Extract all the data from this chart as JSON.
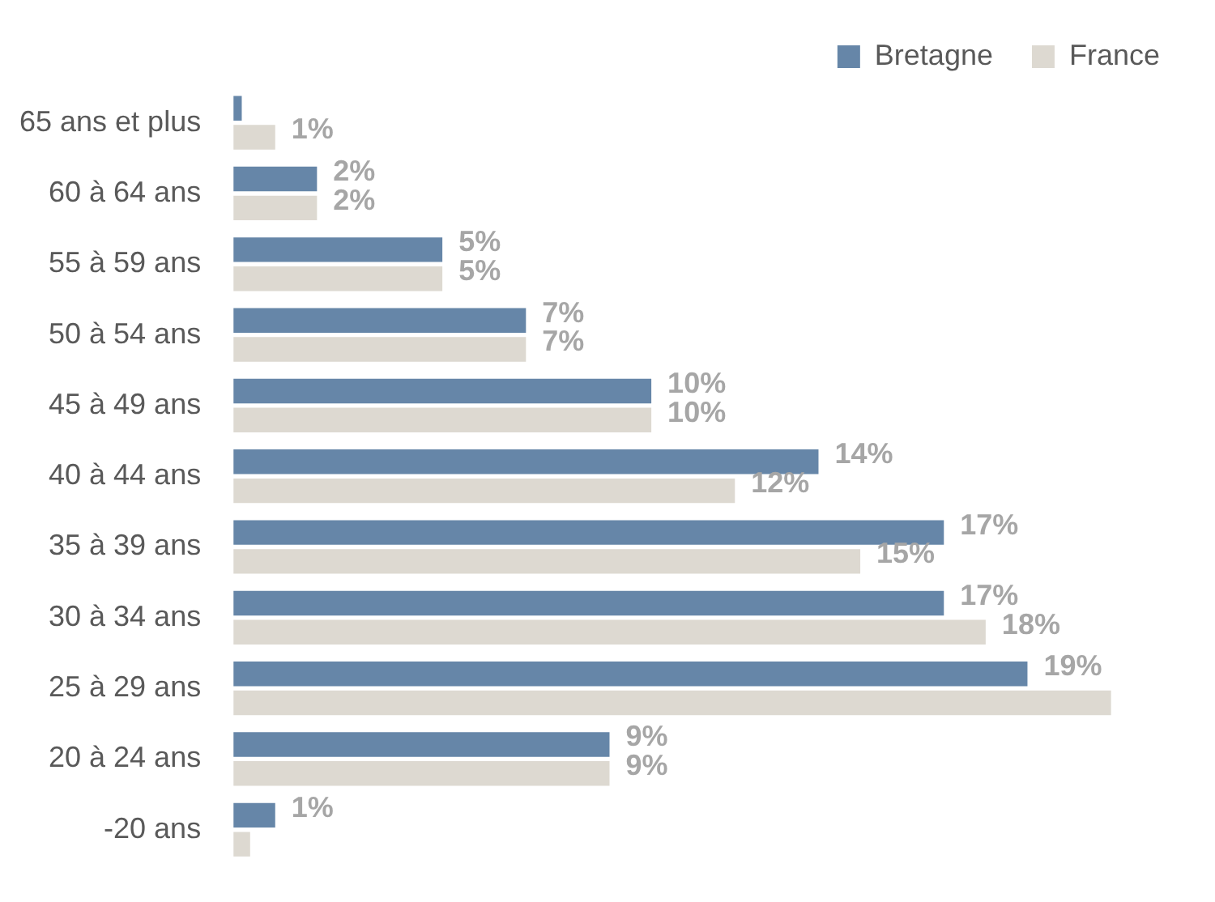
{
  "chart_data": {
    "type": "bar",
    "orientation": "horizontal",
    "categories": [
      "65 ans et plus",
      "60 à 64 ans",
      "55 à 59 ans",
      "50 à 54 ans",
      "45 à 49 ans",
      "40 à 44 ans",
      "35 à 39 ans",
      "30 à 34 ans",
      "25 à 29 ans",
      "20 à 24 ans",
      "-20 ans"
    ],
    "series": [
      {
        "name": "Bretagne",
        "color": "#6686a8",
        "values": [
          0.2,
          2,
          5,
          7,
          10,
          14,
          17,
          17,
          19,
          9,
          1
        ],
        "value_labels": [
          null,
          "2%",
          "5%",
          "7%",
          "10%",
          "14%",
          "17%",
          "17%",
          "19%",
          "9%",
          "1%"
        ]
      },
      {
        "name": "France",
        "color": "#ddd9d1",
        "values": [
          1,
          2,
          5,
          7,
          10,
          12,
          15,
          18,
          21,
          9,
          0.4
        ],
        "value_labels": [
          "1%",
          "2%",
          "5%",
          "7%",
          "10%",
          "12%",
          "15%",
          "18%",
          null,
          "9%",
          null
        ]
      }
    ],
    "legend": "top right",
    "grid": false
  }
}
